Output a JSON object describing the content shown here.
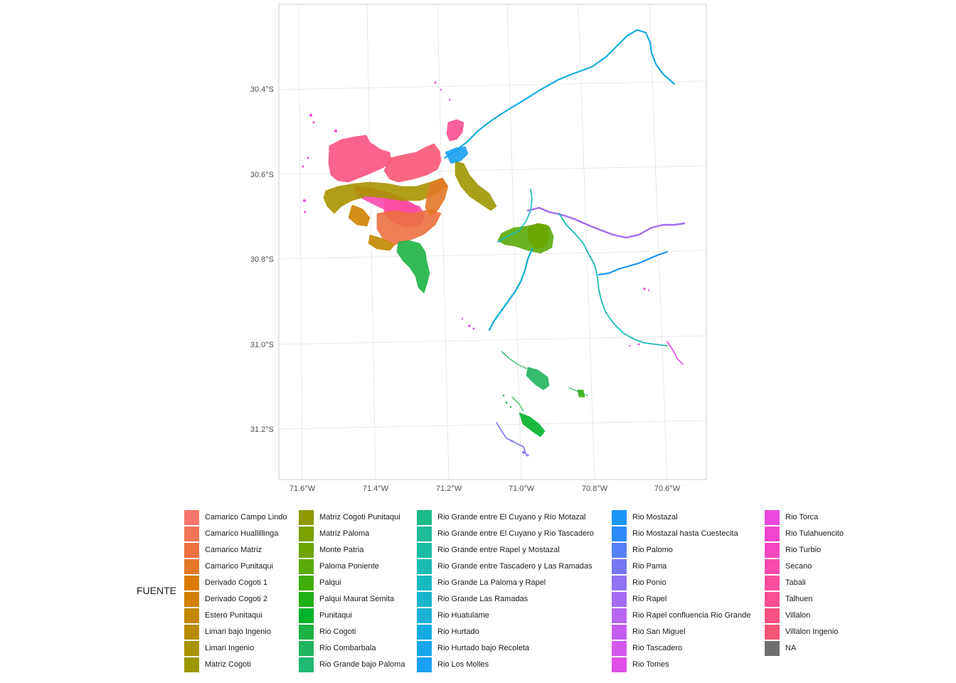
{
  "map": {
    "lon_ticks": [
      "71.6°W",
      "71.4°W",
      "71.2°W",
      "71.0°W",
      "70.8°W",
      "70.6°W"
    ],
    "lat_ticks": [
      "30.4°S",
      "30.6°S",
      "30.8°S",
      "31.0°S",
      "31.2°S"
    ]
  },
  "legend": {
    "title": "FUENTE",
    "items": [
      {
        "label": "Camarico Campo Lindo",
        "color": "#F8766D"
      },
      {
        "label": "Camarico Huallillinga",
        "color": "#F1735A"
      },
      {
        "label": "Camarico Matriz",
        "color": "#EC7040"
      },
      {
        "label": "Camarico Punitaqui",
        "color": "#E37828"
      },
      {
        "label": "Derivado Cogoti 1",
        "color": "#DB7C00"
      },
      {
        "label": "Derivado Cogoti 2",
        "color": "#D08200"
      },
      {
        "label": "Estero Punitaqui",
        "color": "#C38700"
      },
      {
        "label": "Limari bajo Ingenio",
        "color": "#B58C00"
      },
      {
        "label": "Limari Ingenio",
        "color": "#A89300"
      },
      {
        "label": "Matriz Cogoti",
        "color": "#9C9700"
      },
      {
        "label": "Matriz Cogoti Punitaqui",
        "color": "#8C9A00"
      },
      {
        "label": "Matriz Paloma",
        "color": "#7CA000"
      },
      {
        "label": "Monte Patria",
        "color": "#6CA500"
      },
      {
        "label": "Paloma Poniente",
        "color": "#5AAA0A"
      },
      {
        "label": "Palqui",
        "color": "#3FAE0A"
      },
      {
        "label": "Palqui Maurat Semita",
        "color": "#1EB016"
      },
      {
        "label": "Punitaqui",
        "color": "#00B32A"
      },
      {
        "label": "Rio Cogoti",
        "color": "#1CB344"
      },
      {
        "label": "Rio Combarbala",
        "color": "#1FB55C"
      },
      {
        "label": "Rio Grande bajo Paloma",
        "color": "#1FB874"
      },
      {
        "label": "Rio Grande entre El Cuyano y Río Motazal",
        "color": "#1DBB89"
      },
      {
        "label": "Rio Grande entre El Cuyano y Rio Tascadero",
        "color": "#1EBC97"
      },
      {
        "label": "Rio Grande entre Rapel y Mostazal",
        "color": "#1ABCA6"
      },
      {
        "label": "Rio Grande entre Tascadero y Las Ramadas",
        "color": "#1BBCB3"
      },
      {
        "label": "Rio Grande La Paloma y Rapel",
        "color": "#19B9C0"
      },
      {
        "label": "Rio Grande Las Ramadas",
        "color": "#1AB5CC"
      },
      {
        "label": "Rio Huatulame",
        "color": "#1DB1D6"
      },
      {
        "label": "Rio Hurtado",
        "color": "#15ABE0"
      },
      {
        "label": "Rio Hurtado bajo Recoleta",
        "color": "#16A6E8"
      },
      {
        "label": "Rio Los Molles",
        "color": "#1AA0F4"
      },
      {
        "label": "Rio Mostazal",
        "color": "#1C95F9"
      },
      {
        "label": "Rio Mostazal hasta Cuestecita",
        "color": "#2B8BFA"
      },
      {
        "label": "Rio Palomo",
        "color": "#5581F8"
      },
      {
        "label": "Rio Pama",
        "color": "#7777F6"
      },
      {
        "label": "Rio Ponio",
        "color": "#8F72F5"
      },
      {
        "label": "Rio Rapel",
        "color": "#A36CF2"
      },
      {
        "label": "Rio Rapel confluencia Rio Grande",
        "color": "#B666F0"
      },
      {
        "label": "Rio San Miguel",
        "color": "#C65DF0"
      },
      {
        "label": "Rio Tascadero",
        "color": "#D558EC"
      },
      {
        "label": "Rio Tomes",
        "color": "#E14FE6"
      },
      {
        "label": "Rio Torca",
        "color": "#EB48DD"
      },
      {
        "label": "Rio Tulahuencito",
        "color": "#F246D0"
      },
      {
        "label": "Rio Turbio",
        "color": "#F548C0"
      },
      {
        "label": "Secano",
        "color": "#F84AAF"
      },
      {
        "label": "Tabali",
        "color": "#FA4DA0"
      },
      {
        "label": "Talhuen",
        "color": "#FB4F91"
      },
      {
        "label": "Villalon",
        "color": "#FB5283"
      },
      {
        "label": "Villalon Ingenio",
        "color": "#F85675"
      },
      {
        "label": "NA",
        "color": "#6E6E6E"
      }
    ]
  }
}
